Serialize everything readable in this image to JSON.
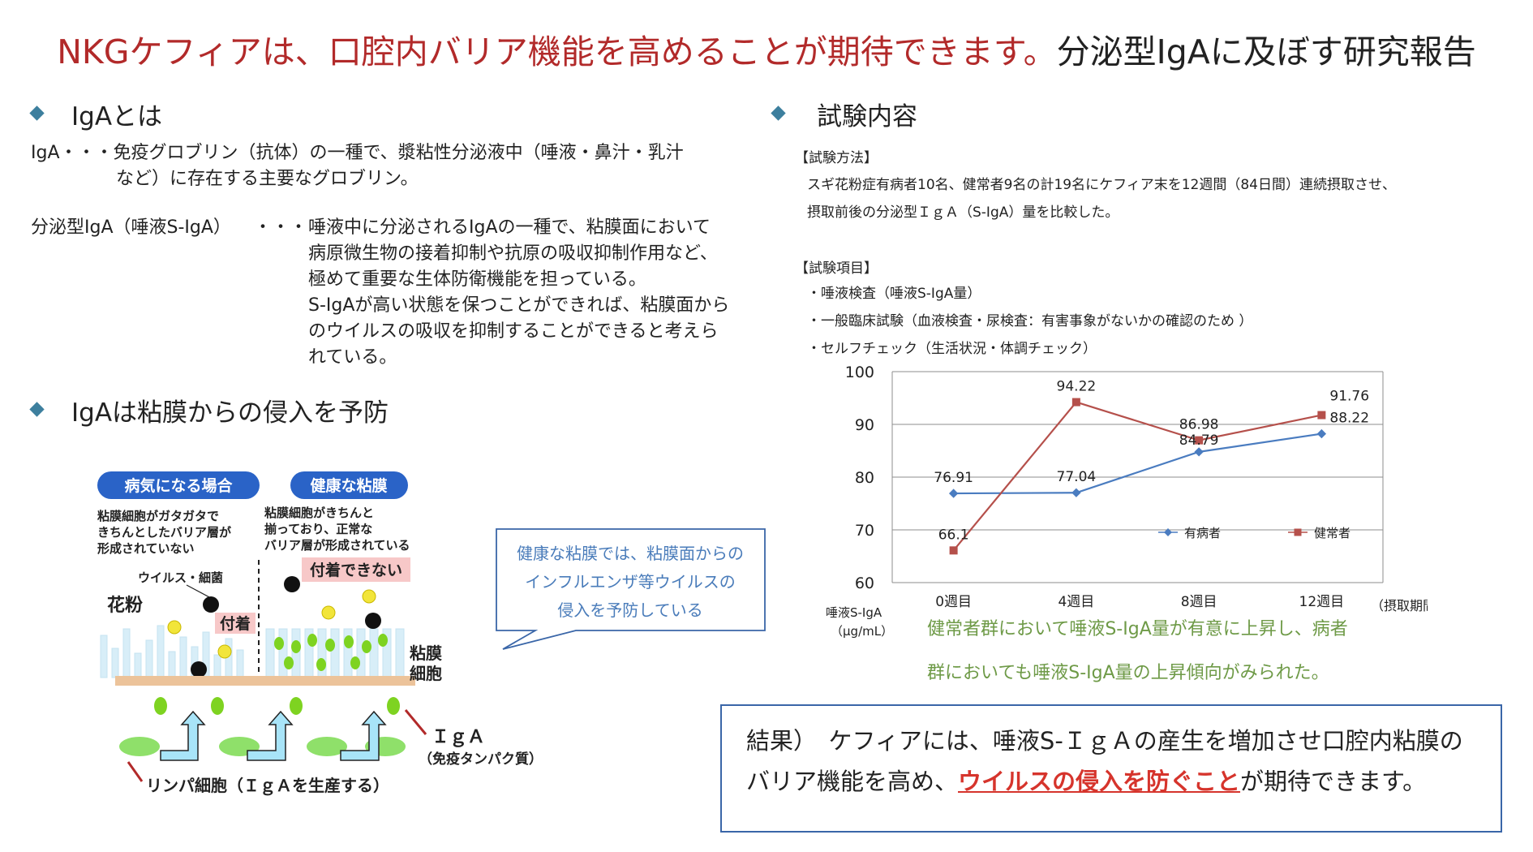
{
  "title": {
    "red": "NKGケフィアは、口腔内バリア機能を高めることが期待できます。",
    "dark": "分泌型IgAに及ぼす研究報告"
  },
  "left": {
    "heading1": "IgAとは",
    "iga_term": "IgA",
    "iga_def_line1": "・・・免疫グロブリン（抗体）の一種で、漿粘性分泌液中（唾液・鼻汁・乳汁",
    "iga_def_line2": "など）に存在する主要なグロブリン。",
    "siga_term": "分泌型IgA（唾液S-IgA）",
    "siga_dots": "・・・",
    "siga_lines": [
      "唾液中に分泌されるIgAの一種で、粘膜面において",
      "病原微生物の接着抑制や抗原の吸収抑制作用など、",
      "極めて重要な生体防衛機能を担っている。",
      "S-IgAが高い状態を保つことができれば、粘膜面から",
      "のウイルスの吸収を抑制することができると考えら",
      "れている。"
    ],
    "heading2": "IgAは粘膜からの侵入を予防"
  },
  "illustration": {
    "pill_sick": "病気になる場合",
    "pill_healthy": "健康な粘膜",
    "sick_desc": [
      "粘膜細胞がガタガタで",
      "きちんとしたバリア層が",
      "形成されていない"
    ],
    "healthy_desc": [
      "粘膜細胞がきちんと",
      "揃っており、正常な",
      "バリア層が形成されている"
    ],
    "virus_label": "ウイルス・細菌",
    "pollen_label": "花粉",
    "attached_label": "付着",
    "not_attached_label": "付着できない",
    "mucosa_label": [
      "粘膜",
      "細胞"
    ],
    "iga_label": "ＩｇＡ",
    "iga_sub": "（免疫タンパク質）",
    "lymph_label": "リンパ細胞（ＩｇＡを生産する）"
  },
  "callout": {
    "lines": [
      "健康な粘膜では、粘膜面からの",
      "インフルエンザ等ウイルスの",
      "侵入を予防している"
    ]
  },
  "right": {
    "heading": "試験内容",
    "method_title": "【試験方法】",
    "method_lines": [
      "スギ花粉症有病者10名、健常者9名の計19名にケフィア末を12週間（84日間）連続摂取させ、",
      "摂取前後の分泌型ＩｇＡ（S-IgA）量を比較した。"
    ],
    "items_title": "【試験項目】",
    "items": [
      "・唾液検査（唾液S-IgA量）",
      "・一般臨床試験（血液検査・尿検査：有害事象がないかの確認のため ）",
      "・セルフチェック（生活状況・体調チェック）"
    ],
    "note_lines": [
      "健常者群において唾液S-IgA量が有意に上昇し、病者",
      "群においても唾液S-IgA量の上昇傾向がみられた。"
    ],
    "result_prefix": "結果）　ケフィアには、唾液S-ＩｇＡの産生を増加させ口腔内粘膜のバリア機能を高め、",
    "result_highlight": "ウイルスの侵入を防ぐこと",
    "result_suffix": "が期待できます。"
  },
  "chart_data": {
    "type": "line",
    "categories": [
      "0週目",
      "4週目",
      "8週目",
      "12週目"
    ],
    "series": [
      {
        "name": "有病者",
        "values": [
          76.91,
          77.04,
          84.79,
          88.22
        ],
        "color": "#4a7cc0",
        "marker": "diamond"
      },
      {
        "name": "健常者",
        "values": [
          66.1,
          94.22,
          86.98,
          91.76
        ],
        "color": "#b5504b",
        "marker": "square"
      }
    ],
    "ylim": [
      60,
      100
    ],
    "yticks": [
      60,
      70,
      80,
      90,
      100
    ],
    "ylabel": "唾液S-IgA",
    "yunit": "（μg/mL）",
    "xlabel": "（摂取期間）",
    "grid": true,
    "legend": "inside-bottom-right"
  }
}
